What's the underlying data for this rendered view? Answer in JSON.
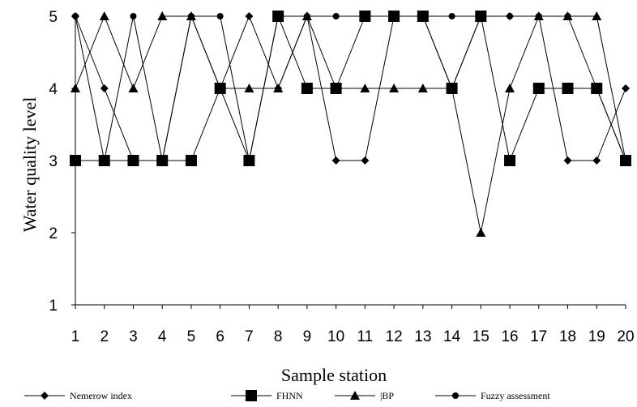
{
  "chart_data": {
    "type": "line",
    "xlabel": "Sample station",
    "ylabel": "Water quality level",
    "x": [
      1,
      2,
      3,
      4,
      5,
      6,
      7,
      8,
      9,
      10,
      11,
      12,
      13,
      14,
      15,
      16,
      17,
      18,
      19,
      20
    ],
    "xlim": [
      1,
      20
    ],
    "ylim": [
      1,
      5
    ],
    "yticks": [
      1,
      2,
      3,
      4,
      5
    ],
    "grid": false,
    "legend_position": "bottom",
    "series": [
      {
        "name": "Nemerow index",
        "marker": "diamond",
        "values": [
          5,
          4,
          3,
          3,
          5,
          4,
          5,
          4,
          5,
          3,
          3,
          5,
          5,
          4,
          5,
          5,
          5,
          3,
          3,
          4
        ]
      },
      {
        "name": "FHNN",
        "marker": "square",
        "values": [
          3,
          3,
          3,
          3,
          3,
          4,
          3,
          5,
          4,
          4,
          5,
          5,
          5,
          4,
          5,
          3,
          4,
          4,
          4,
          3
        ]
      },
      {
        "name": "|BP",
        "marker": "triangle",
        "values": [
          4,
          5,
          4,
          5,
          5,
          4,
          4,
          4,
          5,
          4,
          4,
          4,
          4,
          4,
          2,
          4,
          5,
          5,
          5,
          3
        ]
      },
      {
        "name": "Fuzzy assessment",
        "marker": "circle",
        "values": [
          5,
          3,
          5,
          3,
          5,
          5,
          3,
          5,
          5,
          5,
          5,
          5,
          5,
          5,
          5,
          5,
          5,
          5,
          4,
          3
        ]
      }
    ]
  }
}
